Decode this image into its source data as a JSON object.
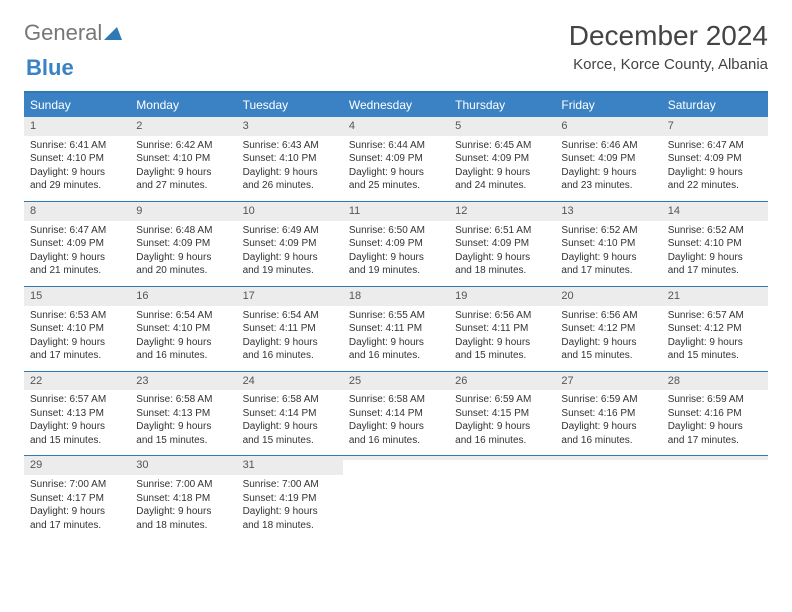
{
  "brand": {
    "part1": "General",
    "part2": "Blue"
  },
  "title": "December 2024",
  "location": "Korce, Korce County, Albania",
  "colors": {
    "header_bg": "#3b82c4",
    "border": "#2f79b5",
    "daynum_bg": "#ececec",
    "text": "#333333"
  },
  "layout": {
    "columns": 7,
    "font_family": "Arial",
    "title_fontsize": 28,
    "location_fontsize": 15,
    "dow_fontsize": 12,
    "cell_fontsize": 10
  },
  "days_of_week": [
    "Sunday",
    "Monday",
    "Tuesday",
    "Wednesday",
    "Thursday",
    "Friday",
    "Saturday"
  ],
  "weeks": [
    [
      {
        "n": "1",
        "sr": "Sunrise: 6:41 AM",
        "ss": "Sunset: 4:10 PM",
        "dl": "Daylight: 9 hours and 29 minutes."
      },
      {
        "n": "2",
        "sr": "Sunrise: 6:42 AM",
        "ss": "Sunset: 4:10 PM",
        "dl": "Daylight: 9 hours and 27 minutes."
      },
      {
        "n": "3",
        "sr": "Sunrise: 6:43 AM",
        "ss": "Sunset: 4:10 PM",
        "dl": "Daylight: 9 hours and 26 minutes."
      },
      {
        "n": "4",
        "sr": "Sunrise: 6:44 AM",
        "ss": "Sunset: 4:09 PM",
        "dl": "Daylight: 9 hours and 25 minutes."
      },
      {
        "n": "5",
        "sr": "Sunrise: 6:45 AM",
        "ss": "Sunset: 4:09 PM",
        "dl": "Daylight: 9 hours and 24 minutes."
      },
      {
        "n": "6",
        "sr": "Sunrise: 6:46 AM",
        "ss": "Sunset: 4:09 PM",
        "dl": "Daylight: 9 hours and 23 minutes."
      },
      {
        "n": "7",
        "sr": "Sunrise: 6:47 AM",
        "ss": "Sunset: 4:09 PM",
        "dl": "Daylight: 9 hours and 22 minutes."
      }
    ],
    [
      {
        "n": "8",
        "sr": "Sunrise: 6:47 AM",
        "ss": "Sunset: 4:09 PM",
        "dl": "Daylight: 9 hours and 21 minutes."
      },
      {
        "n": "9",
        "sr": "Sunrise: 6:48 AM",
        "ss": "Sunset: 4:09 PM",
        "dl": "Daylight: 9 hours and 20 minutes."
      },
      {
        "n": "10",
        "sr": "Sunrise: 6:49 AM",
        "ss": "Sunset: 4:09 PM",
        "dl": "Daylight: 9 hours and 19 minutes."
      },
      {
        "n": "11",
        "sr": "Sunrise: 6:50 AM",
        "ss": "Sunset: 4:09 PM",
        "dl": "Daylight: 9 hours and 19 minutes."
      },
      {
        "n": "12",
        "sr": "Sunrise: 6:51 AM",
        "ss": "Sunset: 4:09 PM",
        "dl": "Daylight: 9 hours and 18 minutes."
      },
      {
        "n": "13",
        "sr": "Sunrise: 6:52 AM",
        "ss": "Sunset: 4:10 PM",
        "dl": "Daylight: 9 hours and 17 minutes."
      },
      {
        "n": "14",
        "sr": "Sunrise: 6:52 AM",
        "ss": "Sunset: 4:10 PM",
        "dl": "Daylight: 9 hours and 17 minutes."
      }
    ],
    [
      {
        "n": "15",
        "sr": "Sunrise: 6:53 AM",
        "ss": "Sunset: 4:10 PM",
        "dl": "Daylight: 9 hours and 17 minutes."
      },
      {
        "n": "16",
        "sr": "Sunrise: 6:54 AM",
        "ss": "Sunset: 4:10 PM",
        "dl": "Daylight: 9 hours and 16 minutes."
      },
      {
        "n": "17",
        "sr": "Sunrise: 6:54 AM",
        "ss": "Sunset: 4:11 PM",
        "dl": "Daylight: 9 hours and 16 minutes."
      },
      {
        "n": "18",
        "sr": "Sunrise: 6:55 AM",
        "ss": "Sunset: 4:11 PM",
        "dl": "Daylight: 9 hours and 16 minutes."
      },
      {
        "n": "19",
        "sr": "Sunrise: 6:56 AM",
        "ss": "Sunset: 4:11 PM",
        "dl": "Daylight: 9 hours and 15 minutes."
      },
      {
        "n": "20",
        "sr": "Sunrise: 6:56 AM",
        "ss": "Sunset: 4:12 PM",
        "dl": "Daylight: 9 hours and 15 minutes."
      },
      {
        "n": "21",
        "sr": "Sunrise: 6:57 AM",
        "ss": "Sunset: 4:12 PM",
        "dl": "Daylight: 9 hours and 15 minutes."
      }
    ],
    [
      {
        "n": "22",
        "sr": "Sunrise: 6:57 AM",
        "ss": "Sunset: 4:13 PM",
        "dl": "Daylight: 9 hours and 15 minutes."
      },
      {
        "n": "23",
        "sr": "Sunrise: 6:58 AM",
        "ss": "Sunset: 4:13 PM",
        "dl": "Daylight: 9 hours and 15 minutes."
      },
      {
        "n": "24",
        "sr": "Sunrise: 6:58 AM",
        "ss": "Sunset: 4:14 PM",
        "dl": "Daylight: 9 hours and 15 minutes."
      },
      {
        "n": "25",
        "sr": "Sunrise: 6:58 AM",
        "ss": "Sunset: 4:14 PM",
        "dl": "Daylight: 9 hours and 16 minutes."
      },
      {
        "n": "26",
        "sr": "Sunrise: 6:59 AM",
        "ss": "Sunset: 4:15 PM",
        "dl": "Daylight: 9 hours and 16 minutes."
      },
      {
        "n": "27",
        "sr": "Sunrise: 6:59 AM",
        "ss": "Sunset: 4:16 PM",
        "dl": "Daylight: 9 hours and 16 minutes."
      },
      {
        "n": "28",
        "sr": "Sunrise: 6:59 AM",
        "ss": "Sunset: 4:16 PM",
        "dl": "Daylight: 9 hours and 17 minutes."
      }
    ],
    [
      {
        "n": "29",
        "sr": "Sunrise: 7:00 AM",
        "ss": "Sunset: 4:17 PM",
        "dl": "Daylight: 9 hours and 17 minutes."
      },
      {
        "n": "30",
        "sr": "Sunrise: 7:00 AM",
        "ss": "Sunset: 4:18 PM",
        "dl": "Daylight: 9 hours and 18 minutes."
      },
      {
        "n": "31",
        "sr": "Sunrise: 7:00 AM",
        "ss": "Sunset: 4:19 PM",
        "dl": "Daylight: 9 hours and 18 minutes."
      },
      {
        "n": "",
        "sr": "",
        "ss": "",
        "dl": ""
      },
      {
        "n": "",
        "sr": "",
        "ss": "",
        "dl": ""
      },
      {
        "n": "",
        "sr": "",
        "ss": "",
        "dl": ""
      },
      {
        "n": "",
        "sr": "",
        "ss": "",
        "dl": ""
      }
    ]
  ]
}
